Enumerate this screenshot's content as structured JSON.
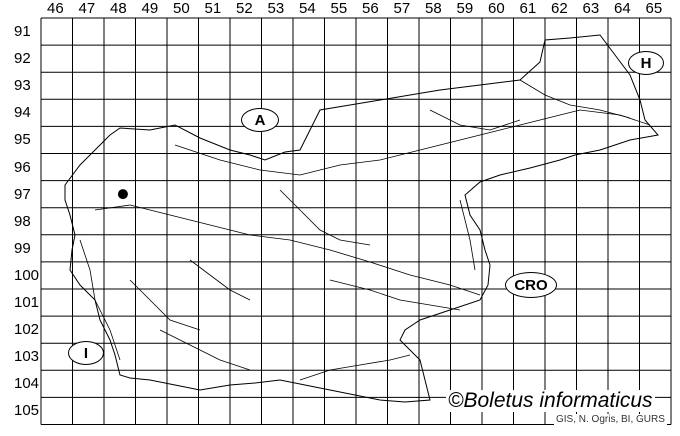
{
  "map": {
    "columns": [
      "46",
      "47",
      "48",
      "49",
      "50",
      "51",
      "52",
      "53",
      "54",
      "55",
      "56",
      "57",
      "58",
      "59",
      "60",
      "61",
      "62",
      "63",
      "64",
      "65"
    ],
    "rows": [
      "91",
      "92",
      "93",
      "94",
      "95",
      "96",
      "97",
      "98",
      "99",
      "100",
      "101",
      "102",
      "103",
      "104",
      "105"
    ],
    "country_labels": {
      "austria": "A",
      "hungary": "H",
      "croatia": "CRO",
      "italy": "I"
    },
    "record_marker": {
      "column": "48",
      "row": "97",
      "color": "#000000"
    },
    "credit": "©Boletus informaticus",
    "source": "GIS, N. Ogris, BI, GURS"
  }
}
